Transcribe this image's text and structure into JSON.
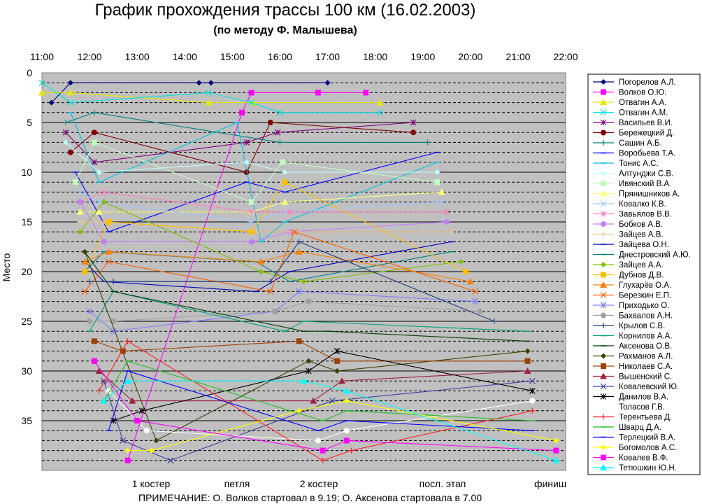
{
  "chart_data": {
    "type": "line",
    "title": "График прохождения трассы 100 км (16.02.2003)",
    "subtitle": "(по методу Ф. Малышева)",
    "ylabel": "Место",
    "xlabel": "",
    "note": "ПРИМЕЧАНИЕ:    О. Волков стартовал в 9.19;  О. Аксенова стартовала в 7.00",
    "x_ticks": [
      "11:00",
      "12:00",
      "13:00",
      "14:00",
      "15:00",
      "16:00",
      "17:00",
      "18:00",
      "19:00",
      "20:00",
      "21:00",
      "22:00"
    ],
    "x_range": [
      11,
      22
    ],
    "checkpoints": [
      "1 костер",
      "петля",
      "2 костер",
      "посл. этап",
      "финиш"
    ],
    "ylim": [
      0,
      40
    ],
    "y_ticks": [
      0,
      5,
      10,
      15,
      20,
      25,
      30,
      35
    ],
    "grid": true,
    "legend_position": "right",
    "series": [
      {
        "name": "Погорелов А.Л.",
        "color": "#000080",
        "marker": "diamond",
        "points": [
          [
            11.2,
            3
          ],
          [
            11.6,
            1
          ],
          [
            14.3,
            1
          ],
          [
            14.55,
            1
          ],
          [
            17.0,
            1
          ]
        ]
      },
      {
        "name": "Волков О.Ю.",
        "color": "#ff00ff",
        "marker": "square",
        "points": [
          [
            12.8,
            39
          ],
          [
            15.2,
            4
          ],
          [
            15.4,
            2
          ],
          [
            16.8,
            2
          ],
          [
            17.8,
            2
          ]
        ]
      },
      {
        "name": "Отвагин А.А.",
        "color": "#e8e800",
        "marker": "triangle",
        "points": [
          [
            11.0,
            2
          ],
          [
            11.6,
            2
          ],
          [
            14.5,
            3
          ],
          [
            15.45,
            3
          ],
          [
            18.1,
            3
          ]
        ]
      },
      {
        "name": "Отвагин А.М.",
        "color": "#00e0e0",
        "marker": "x",
        "points": [
          [
            11.0,
            1
          ],
          [
            11.6,
            3
          ],
          [
            14.5,
            2
          ],
          [
            15.4,
            3
          ],
          [
            16.0,
            4
          ],
          [
            18.1,
            4
          ]
        ]
      },
      {
        "name": "Васильев В.И.",
        "color": "#800080",
        "marker": "star",
        "points": [
          [
            11.5,
            6
          ],
          [
            12.1,
            9
          ],
          [
            15.3,
            7
          ],
          [
            15.95,
            6
          ],
          [
            18.8,
            5
          ]
        ]
      },
      {
        "name": "Бережецкий Д.",
        "color": "#800000",
        "marker": "circle",
        "points": [
          [
            11.6,
            8
          ],
          [
            12.1,
            6
          ],
          [
            15.3,
            10
          ],
          [
            15.8,
            5
          ],
          [
            18.8,
            6
          ]
        ]
      },
      {
        "name": "Сашин А.Б.",
        "color": "#008080",
        "marker": "plus",
        "points": [
          [
            11.5,
            5
          ],
          [
            12.1,
            4
          ],
          [
            16.0,
            7
          ],
          [
            19.1,
            7
          ]
        ]
      },
      {
        "name": "Воробьева Т.А.",
        "color": "#0000ff",
        "marker": "dash",
        "points": [
          [
            11.7,
            10
          ],
          [
            12.4,
            16
          ],
          [
            15.3,
            11
          ],
          [
            16.1,
            12
          ],
          [
            19.3,
            8
          ]
        ]
      },
      {
        "name": "Тонис А.С.",
        "color": "#00c0e0",
        "marker": "dash",
        "points": [
          [
            11.6,
            4
          ],
          [
            12.2,
            11
          ],
          [
            15.1,
            5
          ],
          [
            15.6,
            17
          ],
          [
            16.1,
            15
          ],
          [
            19.3,
            9
          ]
        ]
      },
      {
        "name": "Алтунджи С.В.",
        "color": "#c0ffff",
        "marker": "diamond",
        "points": [
          [
            11.5,
            7
          ],
          [
            12.2,
            10
          ],
          [
            15.3,
            9
          ],
          [
            16.1,
            10
          ],
          [
            19.3,
            10
          ]
        ]
      },
      {
        "name": "Ивянский В.А.",
        "color": "#c0ffc0",
        "marker": "square",
        "points": [
          [
            11.7,
            11
          ],
          [
            12.1,
            7
          ],
          [
            15.4,
            13
          ],
          [
            16.05,
            9
          ],
          [
            19.3,
            11
          ]
        ]
      },
      {
        "name": "Прянишников А.",
        "color": "#ffff80",
        "marker": "triangle",
        "points": [
          [
            11.8,
            14
          ],
          [
            12.2,
            14
          ],
          [
            15.4,
            14
          ],
          [
            16.1,
            13
          ],
          [
            19.4,
            12
          ]
        ]
      },
      {
        "name": "Ковалко К.В.",
        "color": "#a0c8ff",
        "marker": "x",
        "points": [
          [
            11.8,
            12
          ],
          [
            12.2,
            13
          ],
          [
            15.4,
            15
          ],
          [
            16.1,
            14
          ],
          [
            19.4,
            13
          ]
        ]
      },
      {
        "name": "Завьялов В.В.",
        "color": "#ff80c0",
        "marker": "star",
        "points": [
          [
            11.8,
            13
          ],
          [
            12.3,
            12
          ],
          [
            15.4,
            14
          ],
          [
            16.2,
            14
          ],
          [
            19.5,
            14
          ]
        ]
      },
      {
        "name": "Бобков А.В.",
        "color": "#c080ff",
        "marker": "circle",
        "points": [
          [
            11.8,
            13
          ],
          [
            12.3,
            17
          ],
          [
            15.4,
            17
          ],
          [
            16.2,
            16
          ],
          [
            19.5,
            15
          ]
        ]
      },
      {
        "name": "Зайцев А.В.",
        "color": "#ffc080",
        "marker": "plus",
        "points": [
          [
            11.8,
            15
          ],
          [
            12.3,
            15
          ],
          [
            15.5,
            16
          ],
          [
            16.2,
            16
          ],
          [
            19.6,
            16
          ]
        ]
      },
      {
        "name": "Зайцева О.Н.",
        "color": "#0000c0",
        "marker": "dash",
        "points": [
          [
            11.9,
            19
          ],
          [
            12.3,
            21
          ],
          [
            15.5,
            22
          ],
          [
            16.2,
            20
          ],
          [
            19.6,
            17
          ]
        ]
      },
      {
        "name": "Днестровский А.Ю.",
        "color": "#008080",
        "marker": "dash",
        "points": [
          [
            11.9,
            20
          ],
          [
            12.3,
            18
          ],
          [
            15.5,
            19
          ],
          [
            16.2,
            21
          ],
          [
            19.6,
            18
          ]
        ]
      },
      {
        "name": "Зайцев А.А.",
        "color": "#80c000",
        "marker": "diamond",
        "points": [
          [
            11.8,
            16
          ],
          [
            12.3,
            13
          ],
          [
            15.6,
            20
          ],
          [
            16.5,
            21
          ],
          [
            19.8,
            19
          ]
        ]
      },
      {
        "name": "Дубнов Д.В.",
        "color": "#ffc000",
        "marker": "square",
        "points": [
          [
            11.9,
            20
          ],
          [
            12.4,
            15
          ],
          [
            15.4,
            16
          ],
          [
            16.1,
            11
          ],
          [
            19.9,
            20
          ]
        ]
      },
      {
        "name": "Глухарёв О.А.",
        "color": "#ff8000",
        "marker": "triangle",
        "points": [
          [
            11.9,
            19
          ],
          [
            12.4,
            18
          ],
          [
            15.6,
            19
          ],
          [
            16.4,
            18
          ],
          [
            20.0,
            21
          ]
        ]
      },
      {
        "name": "Березкин Е.П.",
        "color": "#ff6000",
        "marker": "x",
        "points": [
          [
            11.9,
            22
          ],
          [
            12.4,
            19
          ],
          [
            15.8,
            22
          ],
          [
            16.3,
            16
          ],
          [
            20.1,
            22
          ]
        ]
      },
      {
        "name": "Приходько О.",
        "color": "#8080ff",
        "marker": "star",
        "points": [
          [
            12.0,
            24
          ],
          [
            12.5,
            26
          ],
          [
            15.9,
            24
          ],
          [
            16.4,
            22
          ],
          [
            20.1,
            23
          ]
        ]
      },
      {
        "name": "Бахвалов А.Н.",
        "color": "#a0a0a0",
        "marker": "circle",
        "points": [
          [
            12.0,
            25
          ],
          [
            12.5,
            25
          ],
          [
            15.9,
            24
          ],
          [
            16.6,
            23
          ],
          [
            20.2,
            24
          ]
        ]
      },
      {
        "name": "Крылов С.В.",
        "color": "#204080",
        "marker": "plus",
        "points": [
          [
            12.0,
            21
          ],
          [
            12.5,
            21
          ],
          [
            15.8,
            21
          ],
          [
            16.4,
            17
          ],
          [
            20.5,
            25
          ]
        ]
      },
      {
        "name": "Корнилов А.А.",
        "color": "#00a080",
        "marker": "dash",
        "points": [
          [
            12.0,
            26
          ],
          [
            12.5,
            22
          ],
          [
            16.1,
            26
          ],
          [
            16.5,
            25
          ],
          [
            21.2,
            26
          ]
        ]
      },
      {
        "name": "Аксенова О.В.",
        "color": "#004000",
        "marker": "dash",
        "points": [
          [
            11.9,
            18
          ],
          [
            12.5,
            22
          ],
          [
            16.5,
            26
          ],
          [
            17.0,
            26
          ],
          [
            21.2,
            27
          ]
        ]
      },
      {
        "name": "Рахманов А.Л.",
        "color": "#404000",
        "marker": "diamond",
        "points": [
          [
            11.9,
            18
          ],
          [
            13.4,
            37
          ],
          [
            16.6,
            29
          ],
          [
            17.2,
            30
          ],
          [
            21.2,
            28
          ]
        ]
      },
      {
        "name": "Николаев С.А.",
        "color": "#a04000",
        "marker": "square",
        "points": [
          [
            12.1,
            27
          ],
          [
            12.7,
            28
          ],
          [
            16.4,
            27
          ],
          [
            17.2,
            29
          ],
          [
            21.2,
            29
          ]
        ]
      },
      {
        "name": "Вышенский С.",
        "color": "#a02040",
        "marker": "triangle",
        "points": [
          [
            12.2,
            30
          ],
          [
            12.9,
            33
          ],
          [
            16.7,
            33
          ],
          [
            17.3,
            31
          ],
          [
            21.2,
            30
          ]
        ]
      },
      {
        "name": "Ковалевский Ю.",
        "color": "#4040a0",
        "marker": "x",
        "points": [
          [
            12.3,
            31
          ],
          [
            12.7,
            37
          ],
          [
            13.7,
            39
          ],
          [
            17.1,
            33
          ],
          [
            21.3,
            31
          ]
        ]
      },
      {
        "name": "Данилов В.А.",
        "color": "#000000",
        "marker": "star",
        "points": [
          [
            12.5,
            35
          ],
          [
            13.1,
            34
          ],
          [
            16.6,
            30
          ],
          [
            17.2,
            28
          ],
          [
            21.3,
            32
          ]
        ]
      },
      {
        "name": "Толасов Г.В.",
        "color": "#ffffff",
        "marker": "circle",
        "points": [
          [
            12.4,
            32
          ],
          [
            13.2,
            36
          ],
          [
            16.8,
            37
          ],
          [
            17.4,
            36
          ],
          [
            21.3,
            33
          ]
        ]
      },
      {
        "name": "Терентьева Д.",
        "color": "#ff2020",
        "marker": "plus",
        "points": [
          [
            12.2,
            32
          ],
          [
            12.8,
            27
          ],
          [
            16.9,
            39
          ],
          [
            17.5,
            38
          ],
          [
            21.3,
            34
          ]
        ]
      },
      {
        "name": "Шварц Д.А.",
        "color": "#20c020",
        "marker": "dash",
        "points": [
          [
            12.3,
            33
          ],
          [
            12.8,
            29
          ],
          [
            16.9,
            35
          ],
          [
            17.4,
            34
          ],
          [
            21.3,
            35
          ]
        ]
      },
      {
        "name": "Терлецкий В.А.",
        "color": "#0000ff",
        "marker": "dash",
        "points": [
          [
            12.4,
            36
          ],
          [
            12.8,
            30
          ],
          [
            16.8,
            36
          ],
          [
            17.4,
            35
          ],
          [
            21.3,
            36
          ]
        ]
      },
      {
        "name": "Богомолов А.С.",
        "color": "#ffff00",
        "marker": "diamond",
        "points": [
          [
            12.8,
            38
          ],
          [
            13.3,
            38
          ],
          [
            16.4,
            34
          ],
          [
            17.4,
            33
          ],
          [
            21.8,
            37
          ]
        ]
      },
      {
        "name": "Ковалев В.Ф.",
        "color": "#ff00ff",
        "marker": "square",
        "points": [
          [
            12.1,
            29
          ],
          [
            13.0,
            35
          ],
          [
            16.9,
            38
          ],
          [
            17.4,
            37
          ],
          [
            21.8,
            38
          ]
        ]
      },
      {
        "name": "Тетюшкин Ю.Н.",
        "color": "#00ffff",
        "marker": "triangle",
        "points": [
          [
            12.3,
            33
          ],
          [
            12.8,
            31
          ],
          [
            16.5,
            31
          ],
          [
            17.4,
            32
          ],
          [
            21.8,
            39
          ]
        ]
      }
    ]
  }
}
